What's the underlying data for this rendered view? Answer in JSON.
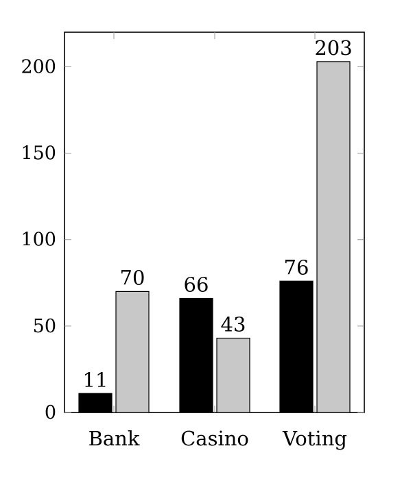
{
  "chart_data": {
    "type": "bar",
    "categories": [
      "Bank",
      "Casino",
      "Voting"
    ],
    "series": [
      {
        "values": [
          11,
          66,
          76
        ],
        "color": "#000000"
      },
      {
        "values": [
          70,
          43,
          203
        ],
        "color": "#c8c8c8"
      }
    ],
    "ylim": [
      0,
      220
    ],
    "yticks": [
      0,
      50,
      100,
      150,
      200
    ],
    "ytick_labels": [
      "0",
      "50",
      "100",
      "150",
      "200"
    ],
    "data_labels": true,
    "grid": false,
    "legend": "none"
  }
}
